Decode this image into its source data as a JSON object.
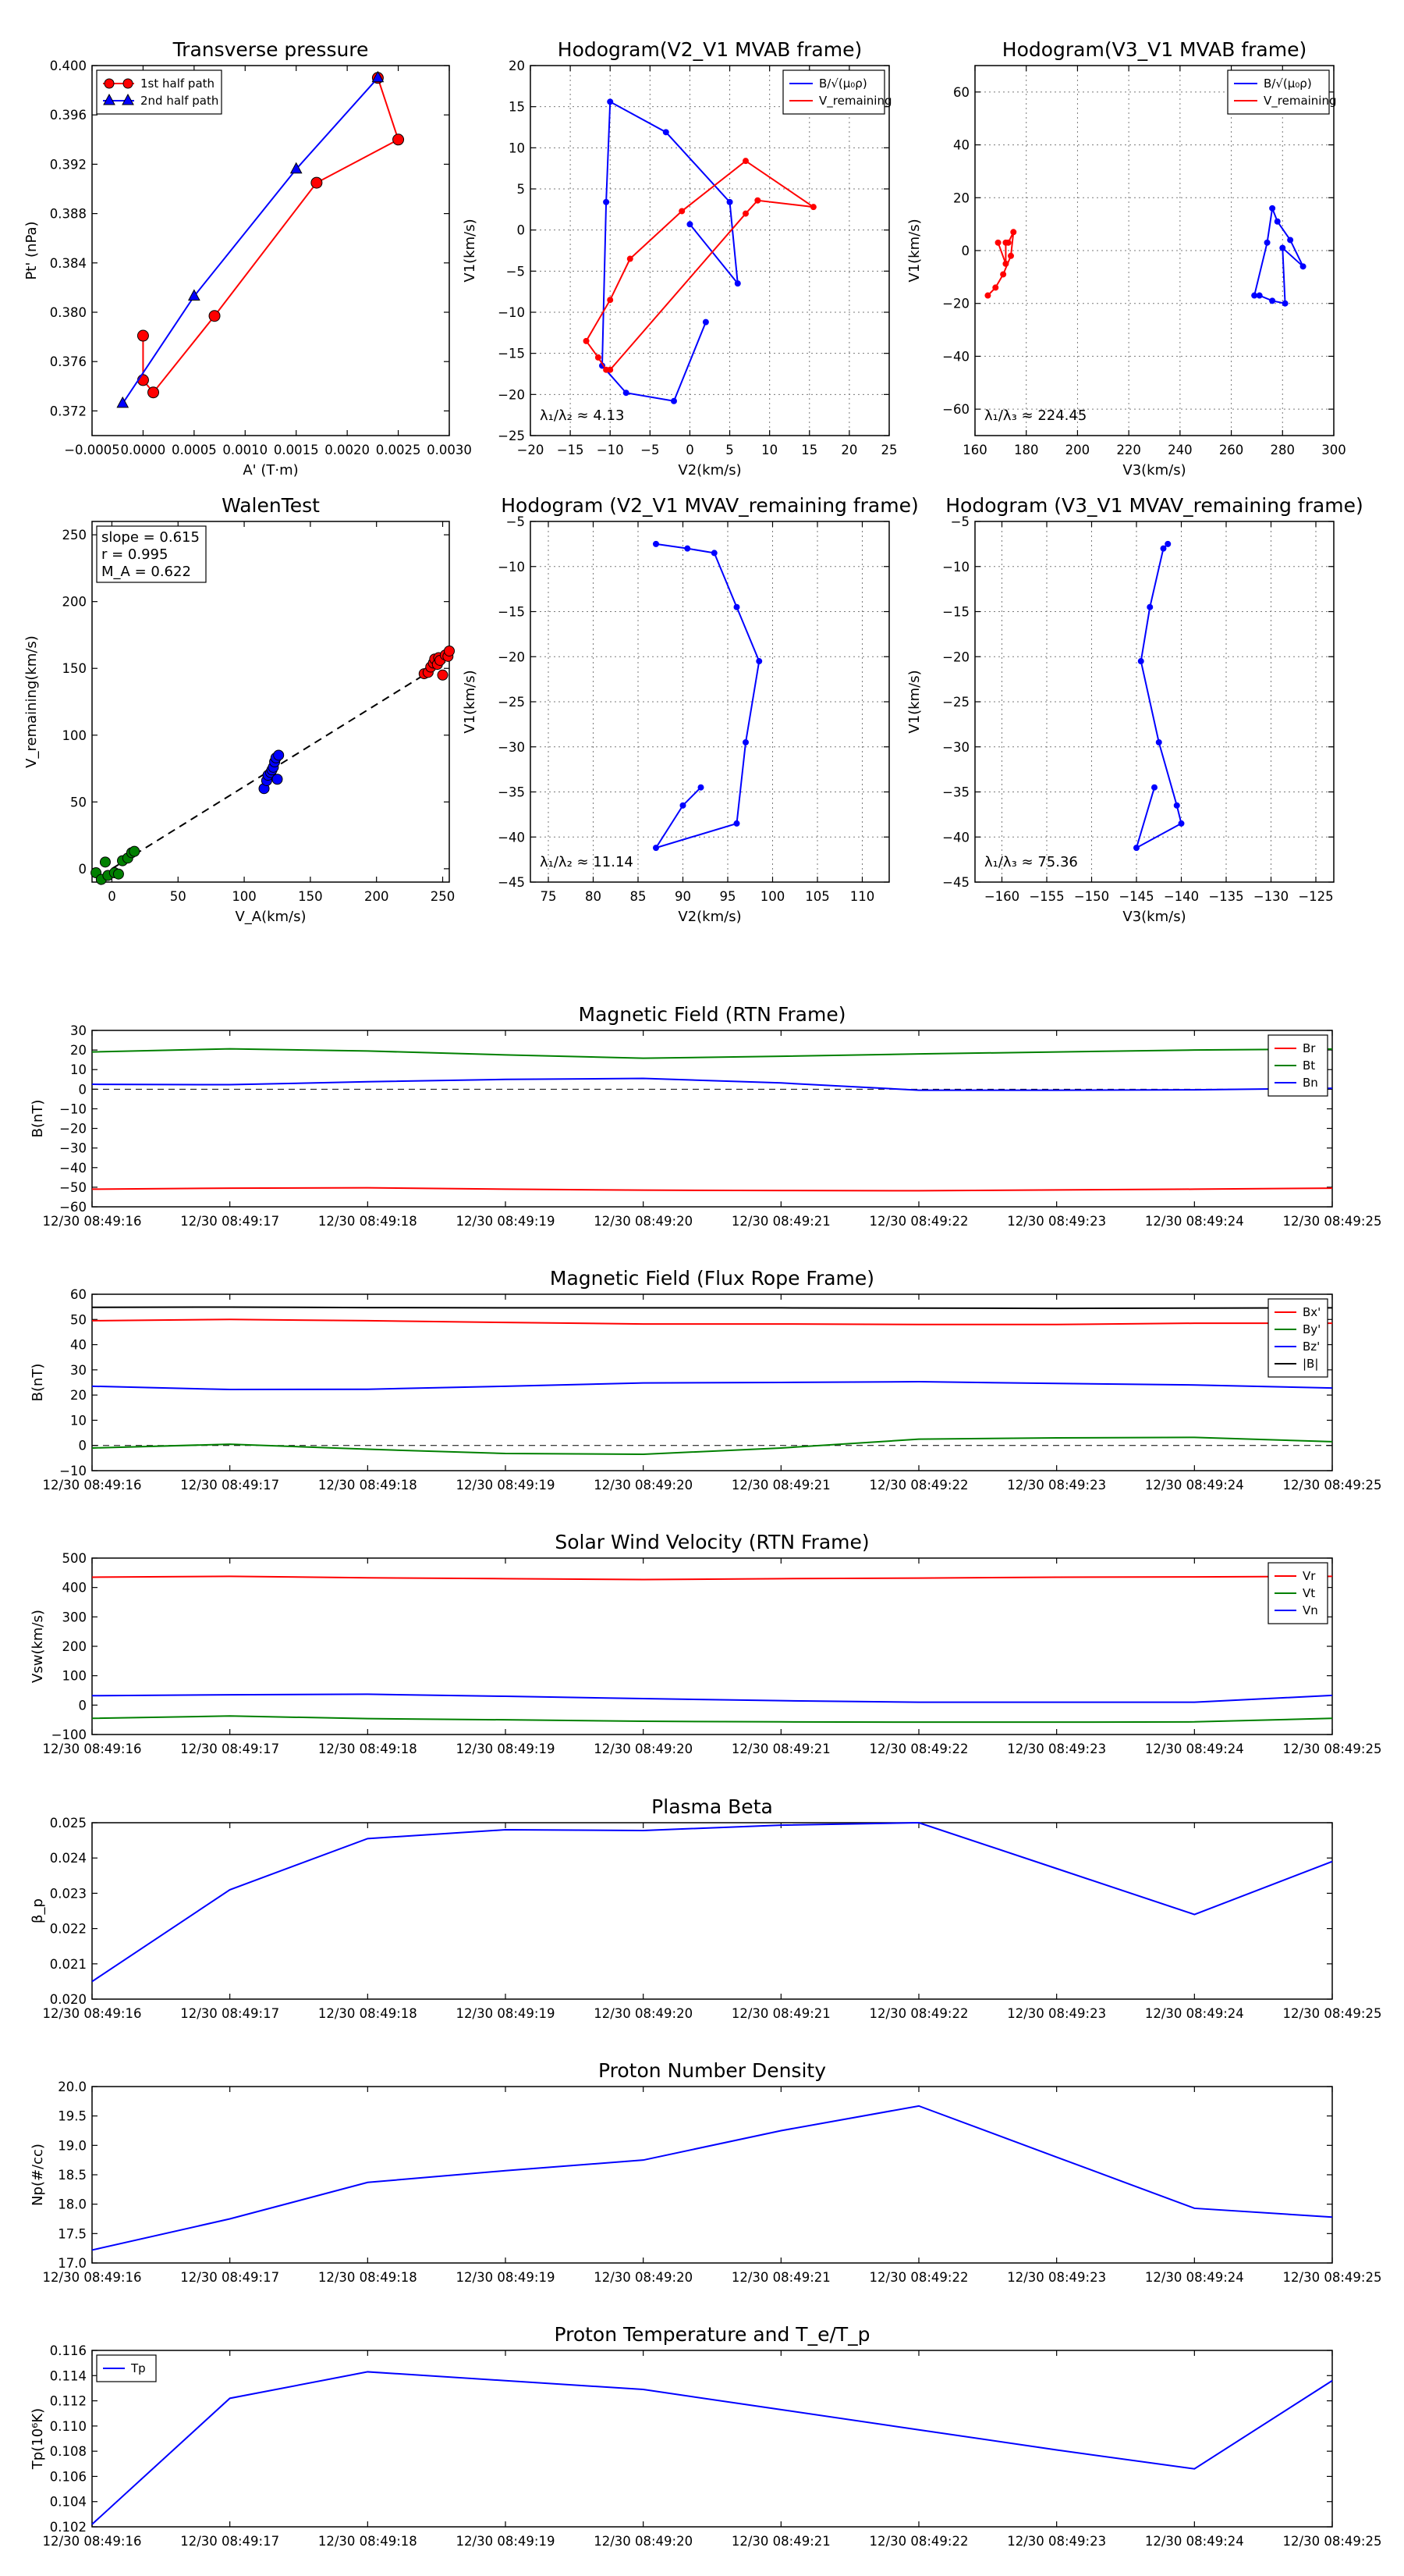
{
  "chart_data": [
    {
      "id": "tp",
      "type": "line",
      "title": "Transverse pressure",
      "xlabel": "A' (T·m)",
      "ylabel": "Pt' (nPa)",
      "xlim": [
        -0.0005,
        0.003
      ],
      "ylim": [
        0.37,
        0.4
      ],
      "xticks": [
        -0.0005,
        0.0,
        0.0005,
        0.001,
        0.0015,
        0.002,
        0.0025,
        0.003
      ],
      "xticklabels": [
        "−0.0005",
        "0.0000",
        "0.0005",
        "0.0010",
        "0.0015",
        "0.0020",
        "0.0025",
        "0.0030"
      ],
      "yticks": [
        0.372,
        0.376,
        0.38,
        0.384,
        0.388,
        0.392,
        0.396,
        0.4
      ],
      "yticklabels": [
        "0.372",
        "0.376",
        "0.380",
        "0.384",
        "0.388",
        "0.392",
        "0.396",
        "0.400"
      ],
      "grid": false,
      "legend": "upper-left",
      "series": [
        {
          "name": "1st half path",
          "color": "#ff0000",
          "marker": "circle",
          "x": [
            0.0,
            0.0,
            0.0001,
            0.0007,
            0.0017,
            0.0025,
            0.0023
          ],
          "y": [
            0.3781,
            0.3745,
            0.3735,
            0.3797,
            0.3905,
            0.394,
            0.399
          ]
        },
        {
          "name": "2nd half path",
          "color": "#0000ff",
          "marker": "triangle",
          "x": [
            0.0023,
            0.0015,
            0.0005,
            -0.0002
          ],
          "y": [
            0.399,
            0.3916,
            0.3813,
            0.3726
          ]
        }
      ]
    },
    {
      "id": "hb23",
      "type": "line",
      "title": "Hodogram(V2_V1 MVAB frame)",
      "xlabel": "V2(km/s)",
      "ylabel": "V1(km/s)",
      "xlim": [
        -20,
        25
      ],
      "ylim": [
        -25,
        20
      ],
      "xticks": [
        -20,
        -15,
        -10,
        -5,
        0,
        5,
        10,
        15,
        20,
        25
      ],
      "yticks": [
        -25,
        -20,
        -15,
        -10,
        -5,
        0,
        5,
        10,
        15,
        20
      ],
      "grid": true,
      "legend": "upper-right",
      "annotation": "λ₁/λ₂ ≈ 4.13",
      "series": [
        {
          "name": "B/√(μ₀ρ)",
          "color": "#0000ff",
          "x": [
            0,
            6,
            5,
            -3,
            -10,
            -10.5,
            -11,
            -8,
            -2,
            2
          ],
          "y": [
            0.7,
            -6.5,
            3.4,
            11.9,
            15.6,
            3.4,
            -16.5,
            -19.8,
            -20.8,
            -11.2
          ]
        },
        {
          "name": "V_remaining",
          "color": "#ff0000",
          "x": [
            -10.5,
            -11.5,
            -13,
            -10,
            -7.5,
            -1,
            7,
            15.5,
            8.5,
            7,
            -10
          ],
          "y": [
            -17,
            -15.5,
            -13.5,
            -8.5,
            -3.5,
            2.3,
            8.4,
            2.8,
            3.6,
            2,
            -17
          ]
        }
      ]
    },
    {
      "id": "hb31",
      "type": "line",
      "title": "Hodogram(V3_V1 MVAB frame)",
      "xlabel": "V3(km/s)",
      "ylabel": "V1(km/s)",
      "xlim": [
        160,
        300
      ],
      "ylim": [
        -70,
        70
      ],
      "xticks": [
        160,
        180,
        200,
        220,
        240,
        260,
        280,
        300
      ],
      "yticks": [
        -60,
        -40,
        -20,
        0,
        20,
        40,
        60
      ],
      "grid": true,
      "legend": "upper-right",
      "annotation": "λ₁/λ₃ ≈ 224.45",
      "series": [
        {
          "name": "B/√(μ₀ρ)",
          "color": "#0000ff",
          "x": [
            269,
            274,
            276,
            278,
            283,
            288,
            280,
            281,
            276,
            271
          ],
          "y": [
            -17,
            3,
            16,
            11,
            4,
            -6,
            1,
            -20,
            -19,
            -17
          ]
        },
        {
          "name": "V_remaining",
          "color": "#ff0000",
          "x": [
            165,
            168,
            171,
            174,
            175,
            173,
            172,
            172,
            169
          ],
          "y": [
            -17,
            -14,
            -9,
            -2,
            7,
            3,
            3,
            -5,
            3
          ]
        }
      ]
    },
    {
      "id": "walen",
      "type": "scatter",
      "title": "WalenTest",
      "xlabel": "V_A(km/s)",
      "ylabel": "V_remaining(km/s)",
      "xlim": [
        -15,
        255
      ],
      "ylim": [
        -10,
        260
      ],
      "xticks": [
        0,
        50,
        100,
        150,
        200,
        250
      ],
      "yticks": [
        0,
        50,
        100,
        150,
        200,
        250
      ],
      "grid": false,
      "stats": [
        "slope = 0.615",
        "r = 0.995",
        "M_A = 0.622"
      ],
      "fit": {
        "slope": 0.615,
        "intercept": 0
      },
      "groups": [
        {
          "color": "#008000",
          "x": [
            -12,
            -8,
            -5,
            -3,
            2,
            5,
            8,
            12,
            15,
            17
          ],
          "y": [
            -3,
            -8,
            5,
            -5,
            -3,
            -4,
            6,
            8,
            12,
            13
          ]
        },
        {
          "color": "#0000ff",
          "x": [
            115,
            117,
            118,
            120,
            121,
            122,
            123,
            124,
            125,
            126
          ],
          "y": [
            60,
            66,
            70,
            72,
            74,
            76,
            80,
            83,
            67,
            85
          ]
        },
        {
          "color": "#ff0000",
          "x": [
            236,
            239,
            241,
            243,
            244,
            246,
            247,
            248,
            250,
            252,
            254,
            255
          ],
          "y": [
            146,
            147,
            151,
            154,
            157,
            153,
            158,
            156,
            145,
            160,
            159,
            163
          ]
        }
      ]
    },
    {
      "id": "hv2",
      "type": "line",
      "title": "Hodogram (V2_V1 MVAV_remaining frame)",
      "xlabel": "V2(km/s)",
      "ylabel": "V1(km/s)",
      "xlim": [
        73,
        113
      ],
      "ylim": [
        -45,
        -5
      ],
      "xticks": [
        75,
        80,
        85,
        90,
        95,
        100,
        105,
        110
      ],
      "yticks": [
        -45,
        -40,
        -35,
        -30,
        -25,
        -20,
        -15,
        -10,
        -5
      ],
      "grid": true,
      "annotation": "λ₁/λ₂ ≈ 11.14",
      "series": [
        {
          "name": "",
          "color": "#0000ff",
          "x": [
            92,
            90,
            87,
            96,
            97,
            98.5,
            96,
            93.5,
            90.5,
            87
          ],
          "y": [
            -34.5,
            -36.5,
            -41.2,
            -38.5,
            -29.5,
            -20.5,
            -14.5,
            -8.5,
            -8,
            -7.5
          ]
        }
      ]
    },
    {
      "id": "hv3",
      "type": "line",
      "title": "Hodogram (V3_V1 MVAV_remaining frame)",
      "xlabel": "V3(km/s)",
      "ylabel": "V1(km/s)",
      "xlim": [
        -163,
        -123
      ],
      "ylim": [
        -45,
        -5
      ],
      "xticks": [
        -160,
        -155,
        -150,
        -145,
        -140,
        -135,
        -130,
        -125
      ],
      "yticks": [
        -45,
        -40,
        -35,
        -30,
        -25,
        -20,
        -15,
        -10,
        -5
      ],
      "grid": true,
      "annotation": "λ₁/λ₃ ≈ 75.36",
      "series": [
        {
          "name": "",
          "color": "#0000ff",
          "x": [
            -143,
            -145,
            -140,
            -140.5,
            -142.5,
            -144.5,
            -143.5,
            -142,
            -141.5
          ],
          "y": [
            -34.5,
            -41.2,
            -38.5,
            -36.5,
            -29.5,
            -20.5,
            -14.5,
            -8,
            -7.5
          ]
        }
      ]
    },
    {
      "id": "mag_rtn",
      "type": "line",
      "title": "Magnetic Field (RTN Frame)",
      "ylabel": "B(nT)",
      "ylim": [
        -60,
        30
      ],
      "yticks": [
        -60,
        -50,
        -40,
        -30,
        -20,
        -10,
        0,
        10,
        20,
        30
      ],
      "xlabels": [
        "12/30 08:49:16",
        "12/30 08:49:17",
        "12/30 08:49:18",
        "12/30 08:49:19",
        "12/30 08:49:20",
        "12/30 08:49:21",
        "12/30 08:49:22",
        "12/30 08:49:23",
        "12/30 08:49:24",
        "12/30 08:49:25"
      ],
      "zero_line": true,
      "legend": "upper-right",
      "series": [
        {
          "name": "Br",
          "color": "#ff0000",
          "values": [
            -51,
            -50.5,
            -50.3,
            -51,
            -51.5,
            -51.7,
            -51.8,
            -51.4,
            -51,
            -50.5
          ]
        },
        {
          "name": "Bt",
          "color": "#008000",
          "values": [
            19,
            20.6,
            19.5,
            17.5,
            15.8,
            16.8,
            18,
            19,
            20,
            20.5
          ]
        },
        {
          "name": "Bn",
          "color": "#0000ff",
          "values": [
            2.5,
            2.3,
            3.8,
            5,
            5.5,
            3.2,
            -0.5,
            -0.5,
            -0.3,
            0.5
          ]
        }
      ]
    },
    {
      "id": "mag_fr",
      "type": "line",
      "title": "Magnetic Field (Flux Rope Frame)",
      "ylabel": "B(nT)",
      "ylim": [
        -10,
        60
      ],
      "yticks": [
        -10,
        0,
        10,
        20,
        30,
        40,
        50,
        60
      ],
      "xlabels": [
        "12/30 08:49:16",
        "12/30 08:49:17",
        "12/30 08:49:18",
        "12/30 08:49:19",
        "12/30 08:49:20",
        "12/30 08:49:21",
        "12/30 08:49:22",
        "12/30 08:49:23",
        "12/30 08:49:24",
        "12/30 08:49:25"
      ],
      "zero_line": true,
      "legend": "upper-right",
      "series": [
        {
          "name": "Bx'",
          "color": "#ff0000",
          "values": [
            49.5,
            50,
            49.5,
            48.8,
            48.2,
            48.2,
            48,
            48,
            48.5,
            48.5
          ]
        },
        {
          "name": "By'",
          "color": "#008000",
          "values": [
            -1,
            0.5,
            -1.5,
            -3.2,
            -3.5,
            -1,
            2.5,
            3,
            3.2,
            1.5
          ]
        },
        {
          "name": "Bz'",
          "color": "#0000ff",
          "values": [
            23.5,
            22.2,
            22.3,
            23.5,
            24.8,
            25,
            25.3,
            24.6,
            24,
            22.8
          ]
        },
        {
          "name": "|B|",
          "color": "#000000",
          "values": [
            54.8,
            54.9,
            54.7,
            54.6,
            54.6,
            54.6,
            54.5,
            54.4,
            54.5,
            54.6
          ]
        }
      ]
    },
    {
      "id": "vsw",
      "type": "line",
      "title": "Solar Wind Velocity (RTN Frame)",
      "ylabel": "Vsw(km/s)",
      "ylim": [
        -100,
        500
      ],
      "yticks": [
        -100,
        0,
        100,
        200,
        300,
        400,
        500
      ],
      "xlabels": [
        "12/30 08:49:16",
        "12/30 08:49:17",
        "12/30 08:49:18",
        "12/30 08:49:19",
        "12/30 08:49:20",
        "12/30 08:49:21",
        "12/30 08:49:22",
        "12/30 08:49:23",
        "12/30 08:49:24",
        "12/30 08:49:25"
      ],
      "zero_line": false,
      "legend": "upper-right",
      "series": [
        {
          "name": "Vr",
          "color": "#ff0000",
          "values": [
            435,
            438,
            433,
            430,
            427,
            430,
            432,
            435,
            436,
            438
          ]
        },
        {
          "name": "Vt",
          "color": "#008000",
          "values": [
            -45,
            -37,
            -46,
            -50,
            -55,
            -57,
            -58,
            -58,
            -57,
            -45
          ]
        },
        {
          "name": "Vn",
          "color": "#0000ff",
          "values": [
            32,
            35,
            37,
            30,
            22,
            15,
            10,
            10,
            10,
            33
          ]
        }
      ]
    },
    {
      "id": "beta",
      "type": "line",
      "title": "Plasma Beta",
      "ylabel": "β_p",
      "ylim": [
        0.02,
        0.025
      ],
      "yticks": [
        0.02,
        0.021,
        0.022,
        0.023,
        0.024,
        0.025
      ],
      "yticklabels": [
        "0.020",
        "0.021",
        "0.022",
        "0.023",
        "0.024",
        "0.025"
      ],
      "xlabels": [
        "12/30 08:49:16",
        "12/30 08:49:17",
        "12/30 08:49:18",
        "12/30 08:49:19",
        "12/30 08:49:20",
        "12/30 08:49:21",
        "12/30 08:49:22",
        "12/30 08:49:23",
        "12/30 08:49:24",
        "12/30 08:49:25"
      ],
      "series": [
        {
          "name": "",
          "color": "#0000ff",
          "values": [
            0.0205,
            0.0231,
            0.02455,
            0.0248,
            0.02478,
            0.02493,
            0.025,
            0.0237,
            0.0224,
            0.0239
          ]
        }
      ]
    },
    {
      "id": "np",
      "type": "line",
      "title": "Proton Number Density",
      "ylabel": "Np(#/cc)",
      "ylim": [
        17.0,
        20.0
      ],
      "yticks": [
        17.0,
        17.5,
        18.0,
        18.5,
        19.0,
        19.5,
        20.0
      ],
      "yticklabels": [
        "17.0",
        "17.5",
        "18.0",
        "18.5",
        "19.0",
        "19.5",
        "20.0"
      ],
      "xlabels": [
        "12/30 08:49:16",
        "12/30 08:49:17",
        "12/30 08:49:18",
        "12/30 08:49:19",
        "12/30 08:49:20",
        "12/30 08:49:21",
        "12/30 08:49:22",
        "12/30 08:49:23",
        "12/30 08:49:24",
        "12/30 08:49:25"
      ],
      "series": [
        {
          "name": "",
          "color": "#0000ff",
          "values": [
            17.22,
            17.75,
            18.37,
            18.57,
            18.75,
            19.25,
            19.67,
            18.8,
            17.93,
            17.78
          ]
        }
      ]
    },
    {
      "id": "tp_temp",
      "type": "line",
      "title": "Proton Temperature and T_e/T_p",
      "ylabel": "Tp(10⁶K)",
      "ylim": [
        0.102,
        0.116
      ],
      "yticks": [
        0.102,
        0.104,
        0.106,
        0.108,
        0.11,
        0.112,
        0.114,
        0.116
      ],
      "yticklabels": [
        "0.102",
        "0.104",
        "0.106",
        "0.108",
        "0.110",
        "0.112",
        "0.114",
        "0.116"
      ],
      "xlabels": [
        "12/30 08:49:16",
        "12/30 08:49:17",
        "12/30 08:49:18",
        "12/30 08:49:19",
        "12/30 08:49:20",
        "12/30 08:49:21",
        "12/30 08:49:22",
        "12/30 08:49:23",
        "12/30 08:49:24",
        "12/30 08:49:25"
      ],
      "legend": "upper-left",
      "series": [
        {
          "name": "Tp",
          "color": "#0000ff",
          "values": [
            0.1022,
            0.1122,
            0.1143,
            0.1136,
            0.1129,
            0.1113,
            0.1097,
            0.1081,
            0.1066,
            0.1136
          ]
        }
      ]
    }
  ]
}
